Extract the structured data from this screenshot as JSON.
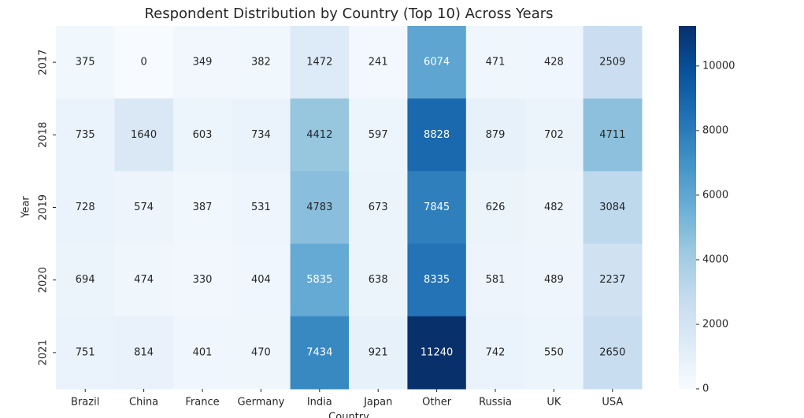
{
  "chart_data": {
    "type": "heatmap",
    "title": "Respondent Distribution by Country (Top 10) Across Years",
    "x_label": "Country",
    "y_label": "Year",
    "x": [
      "Brazil",
      "China",
      "France",
      "Germany",
      "India",
      "Japan",
      "Other",
      "Russia",
      "UK",
      "USA"
    ],
    "y": [
      "2017",
      "2018",
      "2019",
      "2020",
      "2021"
    ],
    "values": [
      [
        375,
        0,
        349,
        382,
        1472,
        241,
        6074,
        471,
        428,
        2509
      ],
      [
        735,
        1640,
        603,
        734,
        4412,
        597,
        8828,
        879,
        702,
        4711
      ],
      [
        728,
        574,
        387,
        531,
        4783,
        673,
        7845,
        626,
        482,
        3084
      ],
      [
        694,
        474,
        330,
        404,
        5835,
        638,
        8335,
        581,
        489,
        2237
      ],
      [
        751,
        814,
        401,
        470,
        7434,
        921,
        11240,
        742,
        550,
        2650
      ]
    ],
    "cmap": "Blues",
    "clim": [
      0,
      11240
    ],
    "cticks": [
      0,
      2000,
      4000,
      6000,
      8000,
      10000
    ]
  }
}
